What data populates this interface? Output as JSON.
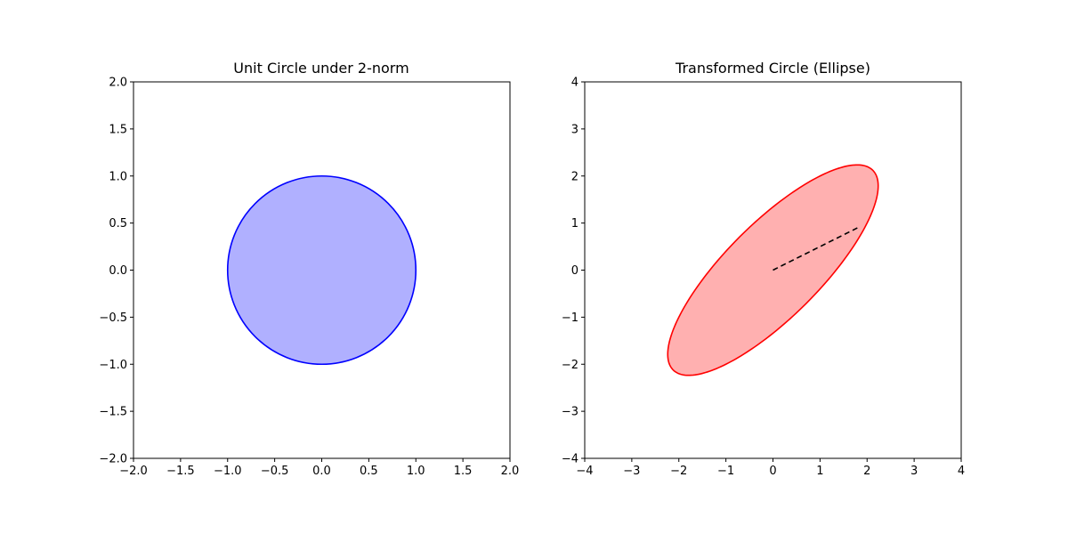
{
  "chart_data": [
    {
      "type": "area",
      "title": "Unit Circle under 2-norm",
      "xlim": [
        -2,
        2
      ],
      "ylim": [
        -2,
        2
      ],
      "xticks": [
        "−2.0",
        "−1.5",
        "−1.0",
        "−0.5",
        "0.0",
        "0.5",
        "1.0",
        "1.5",
        "2.0"
      ],
      "yticks": [
        "−2.0",
        "−1.5",
        "−1.0",
        "−0.5",
        "0.0",
        "0.5",
        "1.0",
        "1.5",
        "2.0"
      ],
      "xtick_values": [
        -2,
        -1.5,
        -1,
        -0.5,
        0,
        0.5,
        1,
        1.5,
        2
      ],
      "ytick_values": [
        -2,
        -1.5,
        -1,
        -0.5,
        0,
        0.5,
        1,
        1.5,
        2
      ],
      "grid": false,
      "series": [
        {
          "shape": "circle",
          "center": [
            0,
            0
          ],
          "radius": 1,
          "edge_color": "#0000ff",
          "fill_color": "#b0b0ff"
        }
      ]
    },
    {
      "type": "area",
      "title": "Transformed Circle (Ellipse)",
      "xlim": [
        -4,
        4
      ],
      "ylim": [
        -4,
        4
      ],
      "xticks": [
        "−4",
        "−3",
        "−2",
        "−1",
        "0",
        "1",
        "2",
        "3",
        "4"
      ],
      "yticks": [
        "−4",
        "−3",
        "−2",
        "−1",
        "0",
        "1",
        "2",
        "3",
        "4"
      ],
      "xtick_values": [
        -4,
        -3,
        -2,
        -1,
        0,
        1,
        2,
        3,
        4
      ],
      "ytick_values": [
        -4,
        -3,
        -2,
        -1,
        0,
        1,
        2,
        3,
        4
      ],
      "grid": false,
      "series": [
        {
          "shape": "ellipse",
          "transform_matrix": [
            [
              2,
              1
            ],
            [
              1,
              2
            ]
          ],
          "edge_color": "#ff0000",
          "fill_color": "#ffb0b0"
        },
        {
          "shape": "segment",
          "style": "dashed",
          "color": "#000000",
          "from": [
            0,
            0
          ],
          "to": [
            1.8,
            0.9
          ]
        }
      ]
    }
  ]
}
